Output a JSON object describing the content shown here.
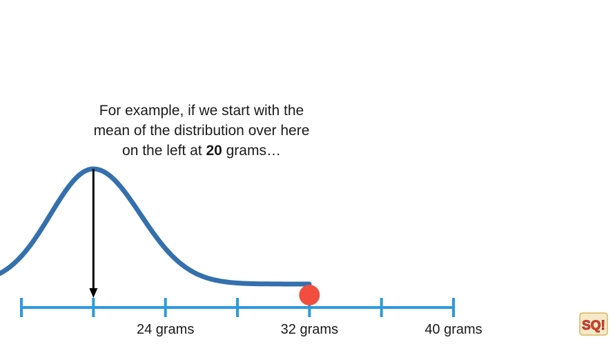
{
  "caption": {
    "line1": "For example, if we start with the",
    "line2": "mean of the distribution over here",
    "line3_prefix": "on the left at ",
    "line3_bold": "20",
    "line3_suffix": " grams…"
  },
  "axis": {
    "ticks": [
      16,
      20,
      24,
      28,
      32,
      36,
      40
    ],
    "labels": [
      {
        "value": 24,
        "text": "24 grams"
      },
      {
        "value": 32,
        "text": "32 grams"
      },
      {
        "value": 40,
        "text": "40 grams"
      }
    ],
    "color": "#2a9ae0"
  },
  "curve": {
    "mean": 20,
    "end": 32,
    "color": "#3470ad"
  },
  "marker": {
    "value": 32,
    "color": "#f24e3f"
  },
  "arrow": {
    "value": 20,
    "color": "#000000"
  },
  "logo": {
    "text": "SQ!",
    "icon": "statquest-logo-icon"
  }
}
